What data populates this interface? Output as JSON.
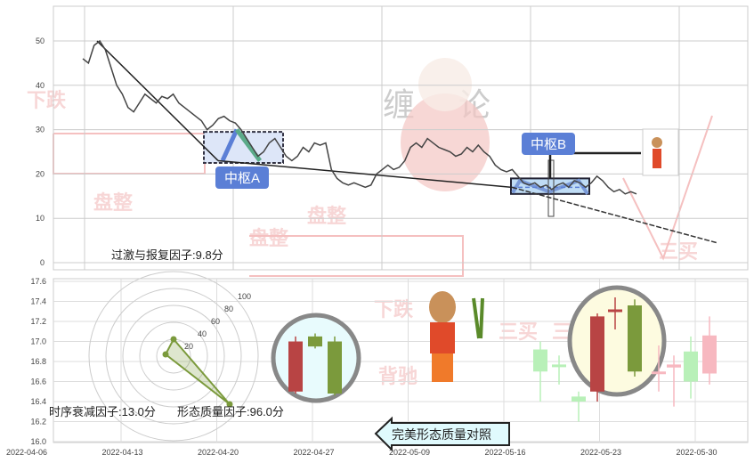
{
  "watermark": {
    "left": "缠",
    "right": "论",
    "words": [
      "下跌",
      "盘整",
      "盘整",
      "盘整",
      "下跌",
      "背驰",
      "三买",
      "三买",
      "三买"
    ]
  },
  "colors": {
    "price": "#444444",
    "pivot_fill": "#5b7fd6",
    "up": "#7b9a3c",
    "down": "#b84444",
    "faded_up": "#b8f0b8",
    "faded_down": "#f7b8c0"
  },
  "pivots": {
    "a": "中枢A",
    "b": "中枢B"
  },
  "factors": {
    "overshoot": "过激与报复因子:9.8分",
    "decay": "时序衰减因子:13.0分",
    "quality": "形态质量因子:96.0分"
  },
  "compare_label": "完美形态质量对照",
  "chart_data": [
    {
      "type": "line",
      "ylim": [
        0,
        55
      ],
      "yticks": [
        "0",
        "10",
        "20",
        "30",
        "40",
        "50"
      ],
      "grid": true,
      "values": [
        46,
        45,
        49,
        50,
        48,
        44,
        40,
        38,
        35,
        34,
        36,
        38,
        37,
        36,
        37.5,
        37,
        38,
        36,
        35,
        34,
        33,
        32,
        30,
        31,
        32.5,
        33,
        32,
        31.5,
        30,
        28,
        26,
        24,
        25,
        27,
        28,
        26,
        24,
        23,
        24,
        26,
        25,
        27,
        26.5,
        27,
        21,
        19,
        18,
        17.5,
        18,
        17.5,
        17,
        17.5,
        20,
        21,
        22,
        21,
        21.5,
        23,
        26,
        27,
        26,
        28,
        27,
        26,
        25.5,
        25,
        24,
        24.5,
        26,
        25,
        26.5,
        25,
        24,
        22,
        21,
        20.5,
        21,
        19.5,
        18,
        17.5,
        18,
        17,
        17.5,
        16.5,
        17.5,
        18,
        17,
        18.5,
        18,
        17,
        18,
        19.5,
        18.5,
        17,
        16,
        16.5,
        15.5,
        16,
        15.5
      ],
      "trend_lines": [
        [
          50,
          23
        ],
        [
          23,
          17
        ],
        [
          17,
          4.5
        ]
      ],
      "pivot_a": {
        "low": 22.5,
        "high": 29.5
      },
      "pivot_b": {
        "low": 15.5,
        "high": 19
      }
    },
    {
      "type": "candlestick",
      "ylim": [
        16.0,
        17.6
      ],
      "yticks": [
        "16.0",
        "16.2",
        "16.4",
        "16.6",
        "16.8",
        "17.0",
        "17.2",
        "17.4",
        "17.6"
      ],
      "xticks": [
        "2022-04-06",
        "2022-04-13",
        "2022-04-20",
        "2022-04-27",
        "2022-05-09",
        "2022-05-16",
        "2022-05-23",
        "2022-05-30"
      ],
      "candles": [
        {
          "o": 17.0,
          "c": 16.5,
          "h": 17.05,
          "l": 16.48,
          "kind": "down"
        },
        {
          "o": 16.95,
          "c": 17.05,
          "h": 17.08,
          "l": 16.93,
          "kind": "up"
        },
        {
          "o": 17.0,
          "c": 16.48,
          "h": 17.05,
          "l": 16.46,
          "kind": "up"
        },
        {
          "o": 16.7,
          "c": 16.92,
          "h": 17.0,
          "l": 16.4,
          "kind": "faded_up"
        },
        {
          "o": 16.75,
          "c": 16.77,
          "h": 16.86,
          "l": 16.57,
          "kind": "faded_up"
        },
        {
          "o": 16.4,
          "c": 16.45,
          "h": 16.5,
          "l": 16.2,
          "kind": "faded_up"
        },
        {
          "o": 17.25,
          "c": 16.5,
          "h": 17.28,
          "l": 16.4,
          "kind": "down"
        },
        {
          "o": 17.32,
          "c": 17.3,
          "h": 17.44,
          "l": 17.12,
          "kind": "down"
        },
        {
          "o": 16.7,
          "c": 17.36,
          "h": 17.42,
          "l": 16.65,
          "kind": "up"
        },
        {
          "o": 16.7,
          "c": 16.7,
          "h": 16.96,
          "l": 16.5,
          "kind": "faded_down"
        },
        {
          "o": 16.77,
          "c": 16.74,
          "h": 16.86,
          "l": 16.35,
          "kind": "faded_down"
        },
        {
          "o": 16.6,
          "c": 16.9,
          "h": 17.05,
          "l": 16.43,
          "kind": "faded_up"
        },
        {
          "o": 17.06,
          "c": 16.68,
          "h": 17.25,
          "l": 16.57,
          "kind": "faded_down"
        }
      ],
      "radar": {
        "rings": [
          "20",
          "40",
          "60",
          "80",
          "100"
        ],
        "values": [
          9.8,
          13.0,
          96.0
        ]
      }
    }
  ]
}
